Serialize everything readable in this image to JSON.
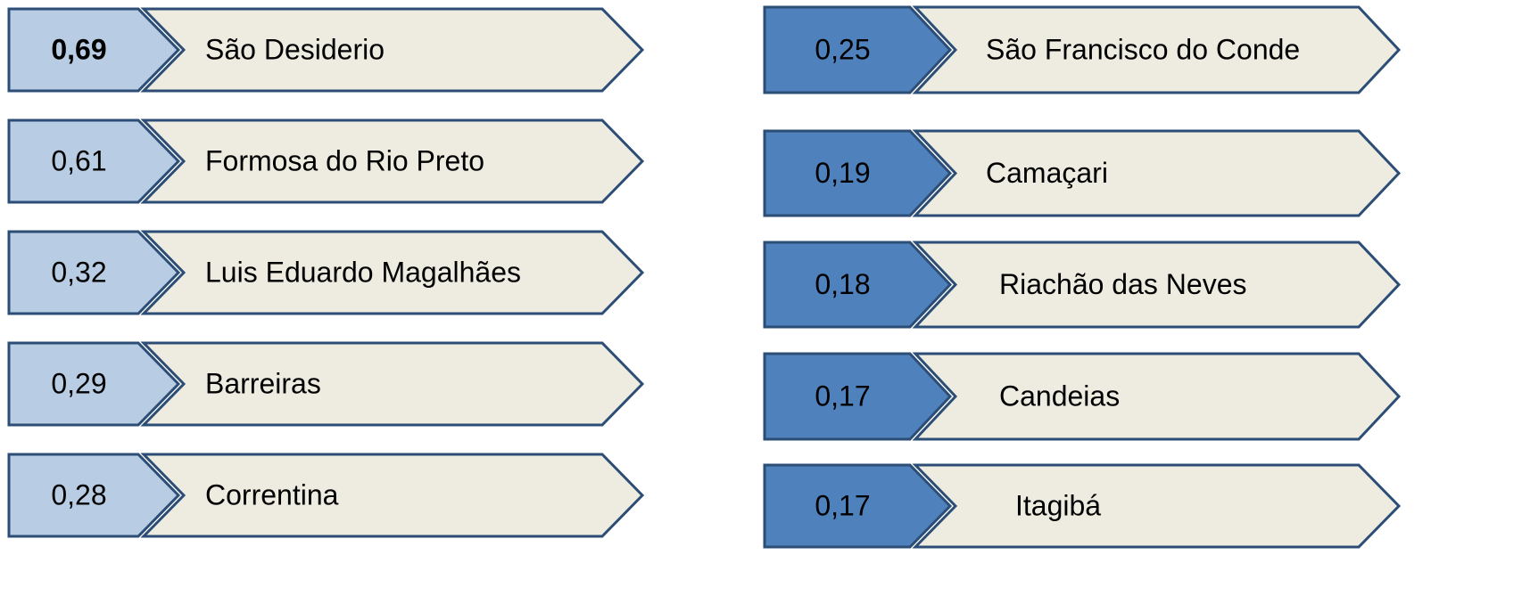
{
  "left": [
    {
      "value": "0,69",
      "name": "São Desiderio"
    },
    {
      "value": "0,61",
      "name": "Formosa do Rio Preto"
    },
    {
      "value": "0,32",
      "name": "Luis Eduardo Magalhães"
    },
    {
      "value": "0,29",
      "name": "Barreiras"
    },
    {
      "value": "0,28",
      "name": "Correntina"
    }
  ],
  "right": [
    {
      "value": "0,25",
      "name": "São Francisco do Conde"
    },
    {
      "value": "0,19",
      "name": "Camaçari"
    },
    {
      "value": "0,18",
      "name": "Riachão das Neves"
    },
    {
      "value": "0,17",
      "name": "Candeias"
    },
    {
      "value": "0,17",
      "name": "Itagibá"
    }
  ]
}
